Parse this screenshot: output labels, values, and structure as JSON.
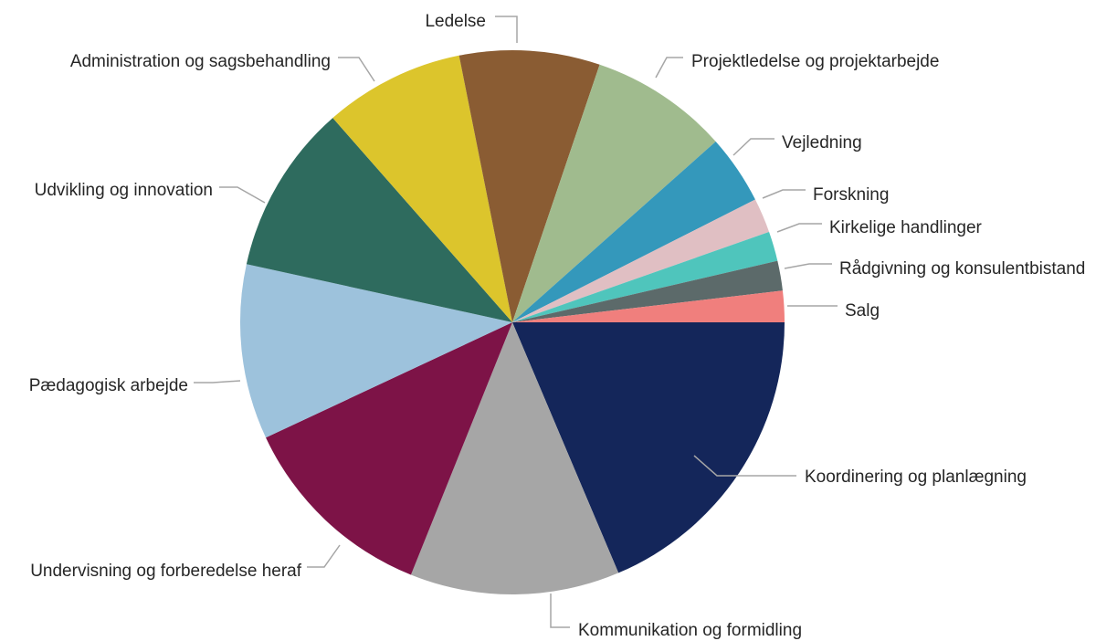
{
  "chart_data": {
    "type": "pie",
    "title": "",
    "start": "3 o'clock",
    "direction": "clockwise",
    "legend": "none",
    "slices": [
      {
        "label": "Koordinering og planlægning",
        "value": 19.0,
        "color": "#14265a"
      },
      {
        "label": "Kommunikation og formidling",
        "value": 12.7,
        "color": "#a6a6a6"
      },
      {
        "label": "Undervisning og forberedelse heraf",
        "value": 12.2,
        "color": "#7d1347"
      },
      {
        "label": "Pædagogisk arbejde",
        "value": 10.6,
        "color": "#9dc2dc"
      },
      {
        "label": "Udvikling og innovation",
        "value": 10.3,
        "color": "#2e6b5e"
      },
      {
        "label": "Administration og sagsbehandling",
        "value": 8.5,
        "color": "#dcc52c"
      },
      {
        "label": "Ledelse",
        "value": 8.5,
        "color": "#8a5c33"
      },
      {
        "label": "Projektledelse og projektarbejde",
        "value": 8.4,
        "color": "#a0bb8e"
      },
      {
        "label": "Vejledning",
        "value": 4.2,
        "color": "#3498bb"
      },
      {
        "label": "Forskning",
        "value": 2.1,
        "color": "#e0bfc3"
      },
      {
        "label": "Kirkelige handlinger",
        "value": 1.8,
        "color": "#4fc5bc"
      },
      {
        "label": "Rådgivning og konsulentbistand",
        "value": 1.8,
        "color": "#5c6a6a"
      },
      {
        "label": "Salg",
        "value": 1.9,
        "color": "#f07f7d"
      }
    ]
  }
}
